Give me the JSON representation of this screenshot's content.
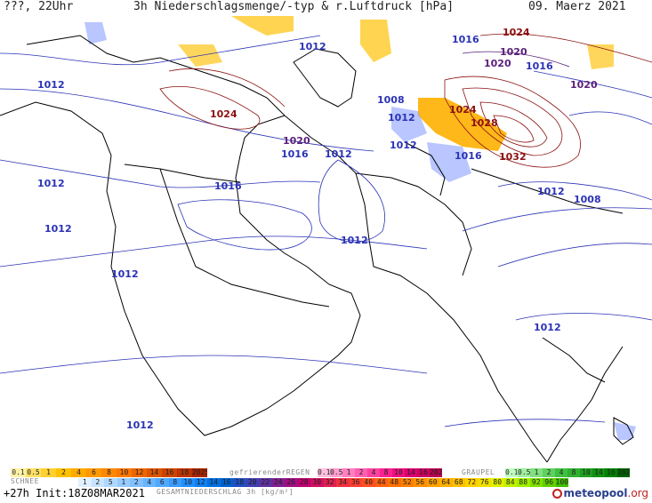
{
  "header": {
    "left": "???, 22Uhr",
    "title": "3h Niederschlagsmenge/-typ & r.Luftdruck [hPa]",
    "date": "09. Maerz 2021"
  },
  "isobars": [
    {
      "value": "1012",
      "color": "#2b33b5"
    },
    {
      "value": "1016",
      "color": "#2b33b5"
    },
    {
      "value": "1020",
      "color": "#2b33b5"
    },
    {
      "value": "1024",
      "color": "#8b1010"
    },
    {
      "value": "1028",
      "color": "#8b1010"
    },
    {
      "value": "1032",
      "color": "#8b1010"
    },
    {
      "value": "1008",
      "color": "#2b33b5"
    }
  ],
  "map_labels": [
    {
      "text": "1012",
      "color": "#2b33b5"
    },
    {
      "text": "1012",
      "color": "#2b33b5"
    },
    {
      "text": "1012",
      "color": "#2b33b5"
    },
    {
      "text": "1012",
      "color": "#2b33b5"
    },
    {
      "text": "1012",
      "color": "#2b33b5"
    },
    {
      "text": "1012",
      "color": "#2b33b5"
    },
    {
      "text": "1012",
      "color": "#2b33b5"
    },
    {
      "text": "1012",
      "color": "#2b33b5"
    },
    {
      "text": "1012",
      "color": "#2b33b5"
    },
    {
      "text": "1012",
      "color": "#2b33b5"
    },
    {
      "text": "1016",
      "color": "#2b33b5"
    },
    {
      "text": "1016",
      "color": "#2b33b5"
    },
    {
      "text": "1016",
      "color": "#2b33b5"
    },
    {
      "text": "1016",
      "color": "#2b33b5"
    },
    {
      "text": "1016",
      "color": "#2b33b5"
    },
    {
      "text": "1020",
      "color": "#5a1f7a"
    },
    {
      "text": "1020",
      "color": "#5a1f7a"
    },
    {
      "text": "1020",
      "color": "#5a1f7a"
    },
    {
      "text": "1020",
      "color": "#5a1f7a"
    },
    {
      "text": "1024",
      "color": "#8b1010"
    },
    {
      "text": "1024",
      "color": "#8b1010"
    },
    {
      "text": "1024",
      "color": "#8b1010"
    },
    {
      "text": "1028",
      "color": "#8b1010"
    },
    {
      "text": "1032",
      "color": "#8b1010"
    },
    {
      "text": "1008",
      "color": "#2b33b5"
    },
    {
      "text": "1008",
      "color": "#2b33b5"
    },
    {
      "text": "1012",
      "color": "#2b33b5"
    },
    {
      "text": "1012",
      "color": "#2b33b5"
    }
  ],
  "legend": {
    "schnee_title": "SCHNEE",
    "schnee_values": [
      "0.1",
      "0.5",
      "1",
      "2",
      "4",
      "6",
      "8",
      "10",
      "12",
      "14",
      "16",
      "18",
      "2025+"
    ],
    "regen_title": "gefrierenderREGEN",
    "regen_values": [
      "0.1",
      "0.5",
      "1",
      "2",
      "4",
      "8",
      "10",
      "14",
      "16",
      "2025+"
    ],
    "graupel_title": "GRAUPEL",
    "graupel_values": [
      "0.1",
      "0.5",
      "1",
      "2",
      "4",
      "8",
      "10",
      "14",
      "16",
      "2025+"
    ],
    "gesamt_values": [
      "1",
      "2",
      "5",
      "1",
      "2",
      "4",
      "6",
      "8",
      "10",
      "12",
      "14",
      "16",
      "18",
      "20",
      "22",
      "24",
      "26",
      "28",
      "30",
      "32",
      "34",
      "36",
      "40",
      "44",
      "48",
      "52",
      "56",
      "60",
      "64",
      "68",
      "72",
      "76",
      "80",
      "84",
      "88",
      "92",
      "96",
      "100"
    ],
    "gesamt_title": "GESAMTNIEDERSCHLAG 3h [kg/m²]",
    "colors": {
      "snow": [
        "#fff2a8",
        "#ffe066",
        "#ffd030",
        "#ffc000",
        "#ffaa00",
        "#ff9900",
        "#ff8800",
        "#ff7700",
        "#ee6600",
        "#dd5500",
        "#cc4400",
        "#bb3300",
        "#aa2200"
      ],
      "regen": [
        "#ffc0e0",
        "#ffa0d0",
        "#ff80c0",
        "#ff60b0",
        "#ff40a0",
        "#ff2090",
        "#ee1080",
        "#dd0070",
        "#cc0060",
        "#bb0050"
      ],
      "graupel": [
        "#c0ffc0",
        "#a0f0a0",
        "#80e080",
        "#60d060",
        "#40c040",
        "#30b030",
        "#20a020",
        "#109010",
        "#008000",
        "#006000"
      ],
      "gesamt": [
        "#e0f0ff",
        "#c8e4ff",
        "#b0d8ff",
        "#98ccff",
        "#80c0ff",
        "#68b4ff",
        "#50a8ff",
        "#389cff",
        "#2090ff",
        "#1080f0",
        "#0070e0",
        "#0060d0",
        "#2050c0",
        "#4040b0",
        "#6030a0",
        "#802090",
        "#a01080",
        "#c00070",
        "#d01060",
        "#e02050",
        "#f03040",
        "#ff4030",
        "#ff5020",
        "#ff6010",
        "#ff7000",
        "#ff8000",
        "#ff9000",
        "#ffa000",
        "#ffb000",
        "#ffc000",
        "#ffd000",
        "#f0e000",
        "#e0f000",
        "#c0f000",
        "#a0f000",
        "#80e000",
        "#60d000",
        "#40c000"
      ]
    }
  },
  "footer": {
    "left": "+27h  Init:18Z08MAR2021",
    "brand_main": "meteopool",
    "brand_suffix": ".org"
  }
}
